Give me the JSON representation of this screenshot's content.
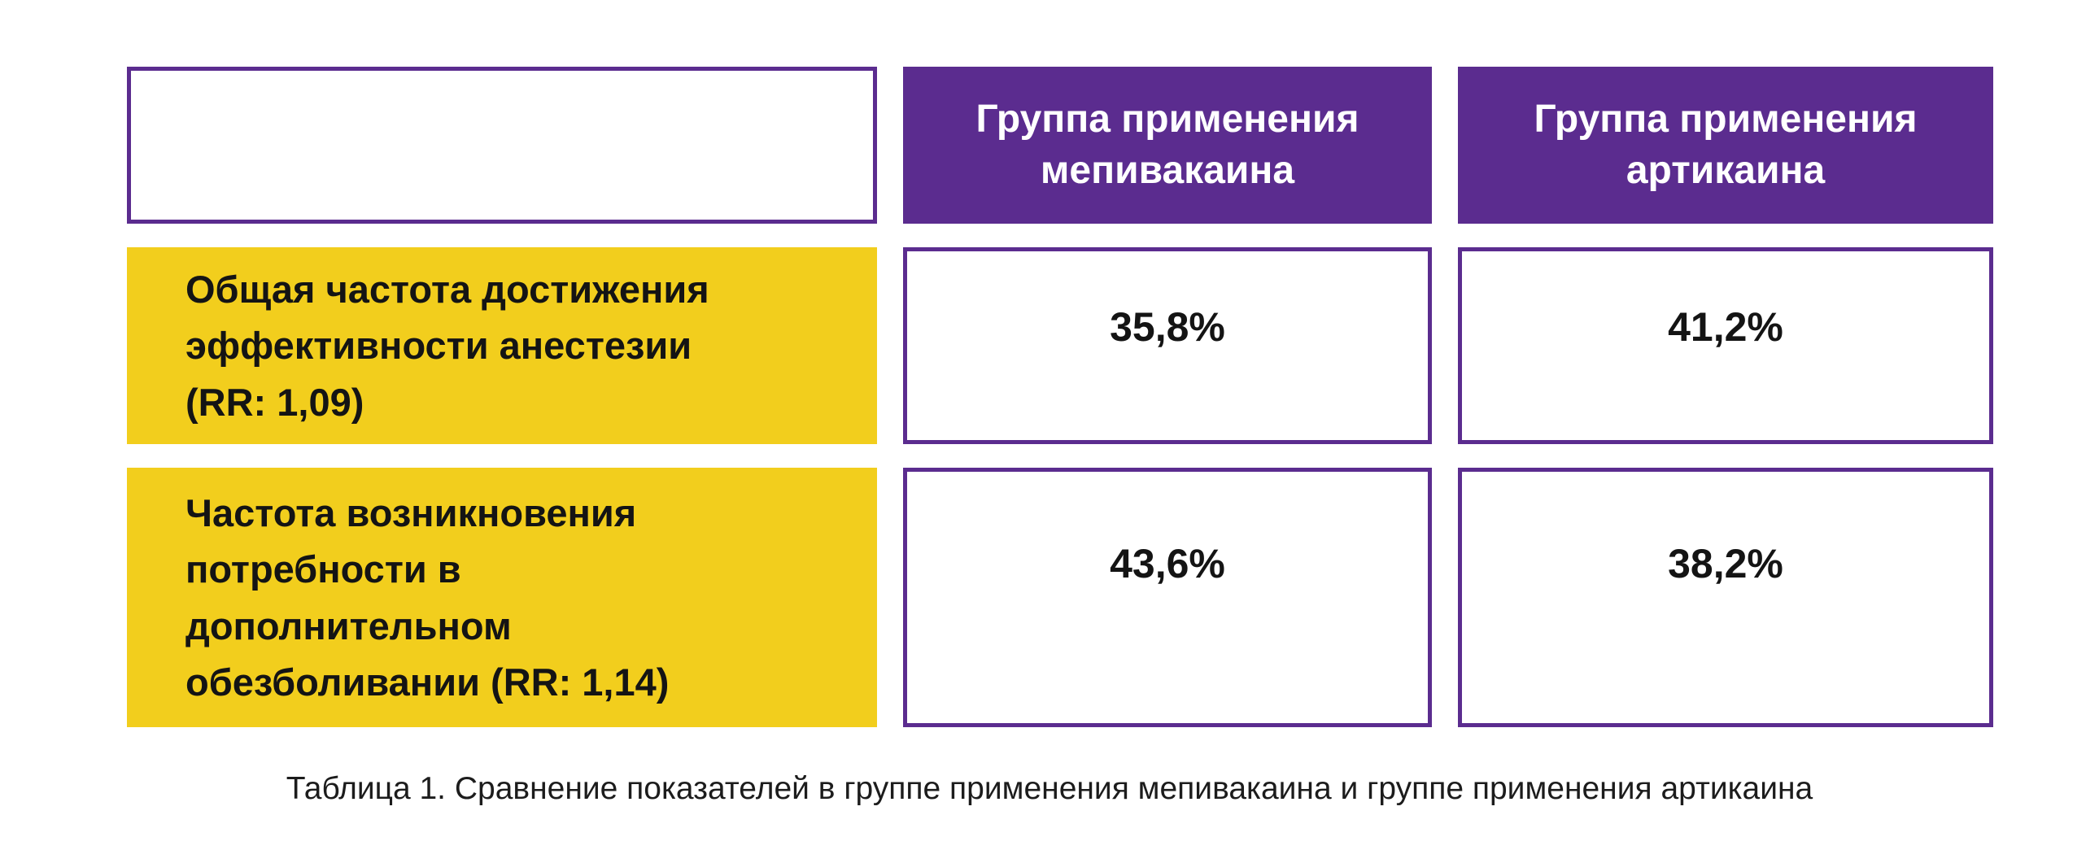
{
  "colors": {
    "purple": "#5B2C8F",
    "yellow": "#F2CE1D",
    "cell-border": "#5B2C8F",
    "text": "#141414",
    "header-text": "#FFFFFF",
    "caption-text": "#1C1C1C",
    "background": "#FFFFFF"
  },
  "table": {
    "headers": [
      "Группа применения\nмепивакаина",
      "Группа применения\nартикаина"
    ],
    "rows": [
      {
        "label": "Общая частота достижения\nэффективности анестезии\n(RR: 1,09)",
        "cells": [
          "35,8%",
          "41,2%"
        ]
      },
      {
        "label": "Частота возникновения\nпотребности в\nдополнительном\nобезболивании (RR: 1,14)",
        "cells": [
          "43,6%",
          "38,2%"
        ]
      }
    ]
  },
  "caption": "Таблица 1. Сравнение показателей в группе применения мепивакаина и группе применения артикаина",
  "chart_data": {
    "type": "table",
    "title": "Таблица 1. Сравнение показателей в группе применения мепивакаина и группе применения артикаина",
    "columns": [
      "",
      "Группа применения мепивакаина",
      "Группа применения артикаина"
    ],
    "rows": [
      {
        "label": "Общая частота достижения эффективности анестезии (RR: 1,09)",
        "values_percent": [
          35.8,
          41.2
        ]
      },
      {
        "label": "Частота возникновения потребности в дополнительном обезболивании (RR: 1,14)",
        "values_percent": [
          43.6,
          38.2
        ]
      }
    ]
  }
}
